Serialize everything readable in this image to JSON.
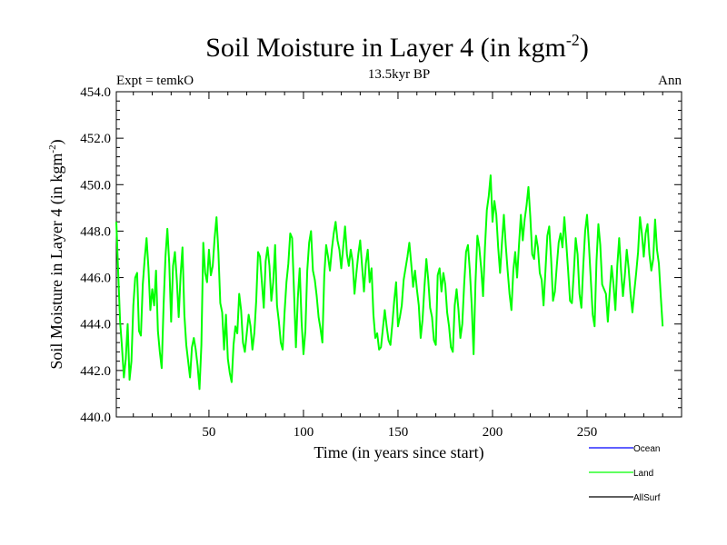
{
  "chart_data": {
    "type": "line",
    "title": "Soil Moisture in Layer 4 (in kgm",
    "title_sup": "-2",
    "title_close": ")",
    "subtitle": "13.5kyr BP",
    "left_label": "Expt = temkO",
    "right_label": "Ann",
    "xlabel": "Time (in years since start)",
    "ylabel": "Soil Moisture in Layer 4 (in kgm",
    "ylabel_sup": "-2",
    "ylabel_close": ")",
    "xlim": [
      1,
      300
    ],
    "ylim": [
      440,
      454
    ],
    "x_ticks": [
      50,
      100,
      150,
      200,
      250
    ],
    "y_ticks": [
      "440.0",
      "442.0",
      "444.0",
      "446.0",
      "448.0",
      "450.0",
      "452.0",
      "454.0"
    ],
    "legend": [
      {
        "name": "Ocean",
        "color": "#0000ff"
      },
      {
        "name": "Land",
        "color": "#00ff00"
      },
      {
        "name": "AllSurf",
        "color": "#000000"
      }
    ],
    "series": [
      {
        "name": "Land",
        "color": "#00ff00",
        "x_start": 1,
        "x_step": 1,
        "values": [
          448.4,
          446.2,
          444.1,
          443.0,
          441.7,
          442.5,
          444.0,
          441.6,
          442.4,
          444.8,
          446.0,
          446.2,
          443.7,
          443.5,
          445.7,
          446.8,
          447.7,
          446.4,
          444.6,
          445.5,
          444.8,
          446.3,
          443.7,
          442.8,
          442.1,
          444.8,
          446.9,
          448.1,
          446.6,
          444.1,
          446.5,
          447.1,
          445.9,
          444.3,
          446.1,
          447.3,
          444.4,
          443.1,
          442.4,
          441.7,
          443.0,
          443.4,
          442.9,
          442.2,
          441.2,
          443.1,
          447.5,
          446.2,
          445.8,
          447.2,
          446.1,
          446.5,
          447.7,
          448.6,
          447.1,
          444.9,
          444.5,
          442.9,
          444.4,
          442.5,
          441.9,
          441.5,
          443.1,
          443.9,
          443.6,
          445.3,
          444.6,
          443.2,
          442.8,
          443.6,
          444.4,
          443.9,
          442.9,
          443.6,
          445.0,
          447.1,
          446.9,
          445.8,
          444.7,
          446.7,
          447.3,
          446.5,
          445.0,
          445.8,
          447.4,
          444.8,
          444.1,
          443.2,
          442.9,
          444.5,
          445.8,
          446.6,
          447.9,
          447.7,
          445.4,
          443.0,
          445.1,
          446.4,
          444.1,
          442.7,
          443.7,
          446.3,
          447.5,
          448.0,
          446.3,
          445.9,
          445.2,
          444.3,
          443.8,
          443.2,
          446.1,
          447.4,
          446.9,
          446.3,
          447.2,
          447.9,
          448.4,
          447.6,
          447.2,
          446.4,
          447.3,
          448.2,
          447.0,
          446.5,
          447.2,
          446.7,
          445.3,
          446.2,
          447.0,
          447.6,
          446.5,
          445.4,
          446.6,
          447.2,
          445.8,
          446.4,
          444.4,
          443.4,
          443.6,
          442.9,
          443.0,
          443.8,
          444.6,
          443.9,
          443.3,
          443.1,
          444.0,
          445.0,
          445.8,
          443.9,
          444.3,
          444.8,
          445.9,
          446.4,
          446.9,
          447.5,
          446.6,
          445.6,
          446.3,
          445.5,
          444.8,
          443.4,
          444.2,
          445.6,
          446.8,
          445.9,
          444.7,
          444.3,
          443.3,
          443.1,
          446.1,
          446.4,
          445.4,
          446.2,
          445.7,
          444.5,
          443.9,
          443.0,
          442.8,
          444.8,
          445.5,
          444.6,
          443.4,
          444.0,
          445.7,
          447.1,
          447.4,
          446.3,
          444.8,
          442.7,
          445.8,
          447.8,
          447.3,
          446.4,
          445.2,
          447.3,
          448.9,
          449.5,
          450.4,
          448.4,
          449.3,
          448.7,
          447.3,
          446.2,
          447.5,
          448.7,
          447.4,
          446.3,
          445.3,
          444.6,
          446.3,
          447.1,
          446.0,
          447.4,
          448.7,
          447.6,
          448.5,
          449.1,
          449.9,
          448.6,
          447.0,
          446.8,
          447.8,
          447.3,
          446.2,
          445.9,
          444.8,
          446.3,
          447.8,
          448.2,
          446.8,
          445.0,
          445.4,
          446.5,
          447.5,
          447.9,
          447.3,
          448.6,
          447.5,
          446.3,
          445.0,
          444.9,
          446.2,
          447.7,
          447.0,
          445.3,
          444.7,
          446.5,
          448.0,
          448.7,
          447.4,
          445.9,
          444.4,
          443.9,
          446.7,
          448.3,
          447.4,
          445.7,
          445.5,
          445.3,
          444.1,
          445.4,
          446.5,
          445.7,
          444.6,
          446.5,
          447.7,
          446.3,
          445.2,
          446.1,
          447.2,
          446.4,
          445.3,
          444.5,
          445.4,
          446.2,
          447.1,
          448.6,
          447.9,
          446.9,
          447.9,
          448.3,
          447.0,
          446.3,
          446.8,
          448.5,
          447.2,
          446.6,
          445.2,
          443.9
        ]
      }
    ]
  }
}
